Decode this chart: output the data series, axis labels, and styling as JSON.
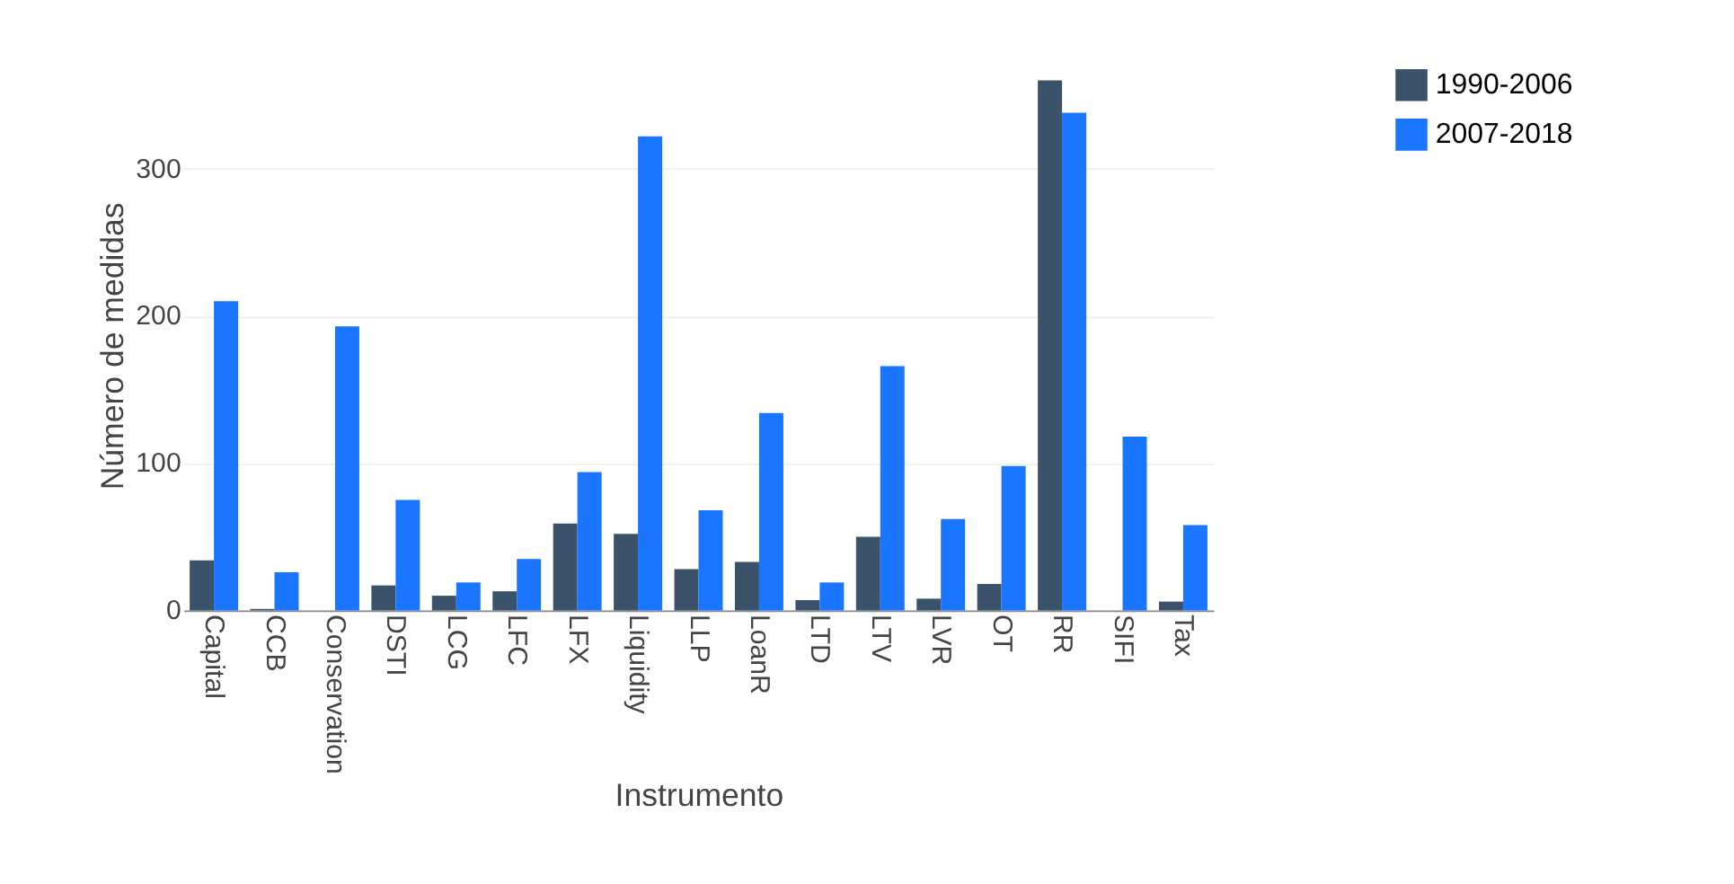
{
  "chart_data": {
    "type": "bar",
    "xlabel": "Instrumento",
    "ylabel": "Número de medidas",
    "categories": [
      "Capital",
      "CCB",
      "Conservation",
      "DSTI",
      "LCG",
      "LFC",
      "LFX",
      "Liquidity",
      "LLP",
      "LoanR",
      "LTD",
      "LTV",
      "LVR",
      "OT",
      "RR",
      "SIFI",
      "Tax"
    ],
    "series": [
      {
        "name": "1990-2006",
        "color": "#3a536b",
        "values": [
          34,
          1,
          0,
          17,
          10,
          13,
          59,
          52,
          28,
          33,
          7,
          50,
          8,
          18,
          360,
          0,
          6
        ]
      },
      {
        "name": "2007-2018",
        "color": "#1a75ff",
        "values": [
          210,
          26,
          193,
          75,
          19,
          35,
          94,
          322,
          68,
          134,
          19,
          166,
          62,
          98,
          338,
          118,
          58
        ]
      }
    ],
    "ylim": [
      0,
      360
    ],
    "yticks": [
      0,
      100,
      200,
      300
    ],
    "grid": "y",
    "legend": "top right"
  }
}
